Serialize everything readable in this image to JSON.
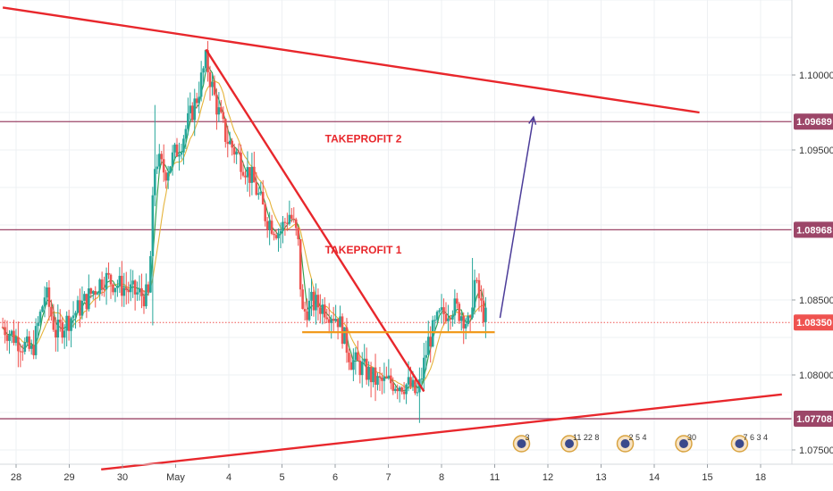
{
  "colors": {
    "background": "#ffffff",
    "grid": "#eef0f3",
    "candle_up": "#26a69a",
    "candle_down": "#ef5350",
    "ma_fast": "#2e9e47",
    "ma_slow": "#e5b33a",
    "trendline": "#e8272c",
    "level_line": "#9c4668",
    "level_badge": "#9c4668",
    "support_line": "#f19a1d",
    "projection_arrow": "#4b3c99",
    "current_price_badge": "#ef5350",
    "annotation_text": "#e8272c",
    "axis_text": "#333333"
  },
  "chart_data": {
    "type": "candlestick",
    "title": "",
    "xlabel": "",
    "ylabel": "",
    "x_tick_labels": [
      "28",
      "29",
      "30",
      "May",
      "4",
      "5",
      "6",
      "7",
      "8",
      "11",
      "12",
      "13",
      "14",
      "15",
      "18"
    ],
    "x_tick_index": [
      0,
      1,
      2,
      3,
      4,
      5,
      6,
      7,
      8,
      9,
      10,
      11,
      12,
      13,
      14
    ],
    "x_range_index": [
      -0.25,
      14.35
    ],
    "y_tick_labels": [
      "1.10000",
      "1.09500",
      "1.08500",
      "1.08000",
      "1.07500"
    ],
    "y_ticks": [
      1.1,
      1.095,
      1.085,
      1.08,
      1.075
    ],
    "ylim": [
      1.0725,
      1.1055
    ],
    "price_levels": [
      {
        "name": "TAKEPROFIT 2",
        "value": 1.09689,
        "label": "1.09689"
      },
      {
        "name": "TAKEPROFIT 1",
        "value": 1.08968,
        "label": "1.08968"
      },
      {
        "name": "",
        "value": 1.07708,
        "label": "1.07708"
      }
    ],
    "current_price": {
      "value": 1.0835,
      "label": "1.08350"
    },
    "annotations": [
      {
        "text": "TAKEPROFIT 2",
        "x_index": 4.85,
        "price": 1.0955
      },
      {
        "text": "TAKEPROFIT 1",
        "x_index": 4.85,
        "price": 1.0881
      }
    ],
    "trendlines": [
      {
        "from": [
          -0.25,
          1.1045
        ],
        "to": [
          12.85,
          1.0975
        ]
      },
      {
        "from": [
          3.57,
          1.1017
        ],
        "to": [
          7.67,
          1.0789
        ]
      },
      {
        "from": [
          1.6,
          1.0737
        ],
        "to": [
          14.4,
          1.0787
        ]
      }
    ],
    "support_segment": {
      "from": [
        5.38,
        1.08285
      ],
      "to": [
        9.0,
        1.08285
      ]
    },
    "projection_arrow": {
      "from": [
        9.1,
        1.0838
      ],
      "to": [
        9.73,
        1.0972
      ]
    },
    "event_markers": [
      {
        "x_index": 9.0,
        "text": "3"
      },
      {
        "x_index": 9.9,
        "text": "11 22 8"
      },
      {
        "x_index": 10.95,
        "text": "2 5 4"
      },
      {
        "x_index": 12.05,
        "text": "30"
      },
      {
        "x_index": 13.1,
        "text": "7 6 3 4"
      }
    ],
    "close_anchors": [
      [
        -0.25,
        1.0832
      ],
      [
        0.3,
        1.0815
      ],
      [
        0.55,
        1.0855
      ],
      [
        0.75,
        1.0828
      ],
      [
        1.2,
        1.0845
      ],
      [
        1.65,
        1.0865
      ],
      [
        2.2,
        1.0855
      ],
      [
        2.5,
        1.0852
      ],
      [
        2.55,
        1.09
      ],
      [
        2.62,
        1.0945
      ],
      [
        2.8,
        1.0935
      ],
      [
        3.1,
        1.0955
      ],
      [
        3.4,
        1.0985
      ],
      [
        3.57,
        1.101
      ],
      [
        3.75,
        1.0982
      ],
      [
        3.95,
        1.0958
      ],
      [
        4.2,
        1.0945
      ],
      [
        4.45,
        1.093
      ],
      [
        4.7,
        1.0905
      ],
      [
        4.95,
        1.0895
      ],
      [
        5.15,
        1.0908
      ],
      [
        5.3,
        1.089
      ],
      [
        5.38,
        1.084
      ],
      [
        5.55,
        1.0848
      ],
      [
        5.8,
        1.0845
      ],
      [
        6.05,
        1.0838
      ],
      [
        6.3,
        1.081
      ],
      [
        6.5,
        1.0805
      ],
      [
        6.8,
        1.0795
      ],
      [
        7.1,
        1.0795
      ],
      [
        7.4,
        1.0793
      ],
      [
        7.55,
        1.0786
      ],
      [
        7.75,
        1.0822
      ],
      [
        7.95,
        1.0838
      ],
      [
        8.2,
        1.0846
      ],
      [
        8.4,
        1.084
      ],
      [
        8.55,
        1.083
      ],
      [
        8.6,
        1.0865
      ],
      [
        8.75,
        1.0845
      ],
      [
        8.83,
        1.0838
      ]
    ],
    "candle_count": 220,
    "random_seed": 7
  }
}
